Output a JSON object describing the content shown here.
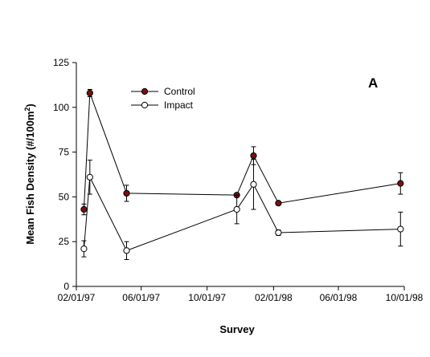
{
  "chart_data": {
    "type": "line",
    "panel_label": "A",
    "xlabel": "Survey",
    "ylabel_parts": {
      "main": "Mean Fish Density (#/100m",
      "sup": "2",
      "end": ")"
    },
    "ylim": [
      0,
      125
    ],
    "yticks": [
      0,
      25,
      50,
      75,
      100,
      125
    ],
    "xlim": [
      "1997-02-01",
      "1998-10-01"
    ],
    "xticks": [
      "1997-02-01",
      "1997-06-01",
      "1997-10-01",
      "1998-02-01",
      "1998-06-01",
      "1998-10-01"
    ],
    "xtick_labels": [
      "02/01/97",
      "06/01/97",
      "10/01/97",
      "02/01/98",
      "06/01/98",
      "10/01/98"
    ],
    "legend_position": "top-left",
    "grid": false,
    "series": [
      {
        "name": "Control",
        "marker": "filled-circle",
        "fill": "#7a0f0f",
        "points": [
          {
            "x": "1997-02-15",
            "y": 43,
            "err": 3
          },
          {
            "x": "1997-02-26",
            "y": 108,
            "err": 2
          },
          {
            "x": "1997-05-05",
            "y": 52,
            "err": 4.5
          },
          {
            "x": "1997-11-25",
            "y": 51,
            "err": 0
          },
          {
            "x": "1997-12-26",
            "y": 73,
            "err": 5
          },
          {
            "x": "1998-02-10",
            "y": 46.5,
            "err": 1
          },
          {
            "x": "1998-09-24",
            "y": 57.5,
            "err": 6
          }
        ]
      },
      {
        "name": "Impact",
        "marker": "open-circle",
        "fill": "#ffffff",
        "points": [
          {
            "x": "1997-02-15",
            "y": 21,
            "err": 4.5
          },
          {
            "x": "1997-02-26",
            "y": 61,
            "err": 9.5
          },
          {
            "x": "1997-05-05",
            "y": 20,
            "err": 5
          },
          {
            "x": "1997-11-25",
            "y": 43,
            "err": 8
          },
          {
            "x": "1997-12-26",
            "y": 57,
            "err": 14
          },
          {
            "x": "1998-02-10",
            "y": 30,
            "err": 1.5
          },
          {
            "x": "1998-09-24",
            "y": 32,
            "err": 9.5
          }
        ]
      }
    ]
  }
}
